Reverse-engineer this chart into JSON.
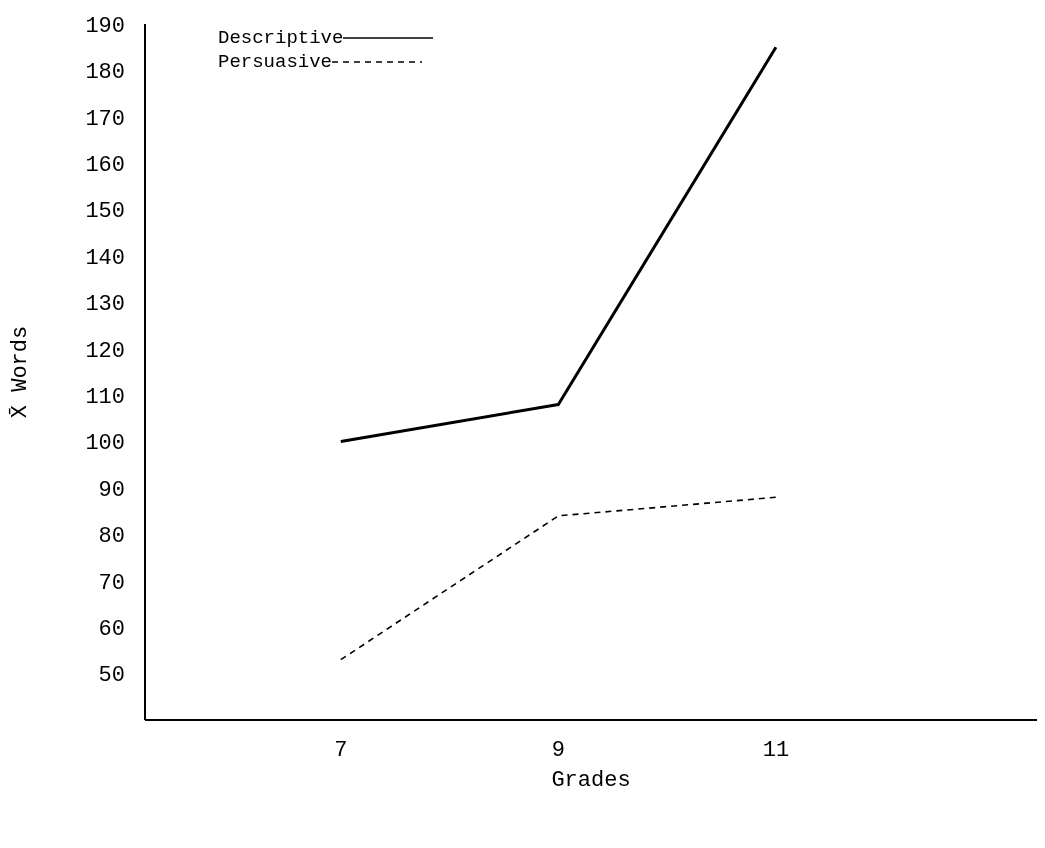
{
  "chart_data": {
    "type": "line",
    "xlabel": "Grades",
    "ylabel": "X̄ Words",
    "x": [
      7,
      9,
      11
    ],
    "series": [
      {
        "name": "Descriptive",
        "color": "#000000",
        "values": [
          100,
          108,
          185
        ],
        "line_style": "solid"
      },
      {
        "name": "Persuasive",
        "color": "#000000",
        "values": [
          53,
          84,
          88
        ],
        "line_style": "dashed"
      }
    ],
    "xlim": [
      5.2,
      13.4
    ],
    "xticks": [
      7,
      9,
      11
    ],
    "ylim": [
      40,
      190
    ],
    "yticks": [
      50,
      60,
      70,
      80,
      90,
      100,
      110,
      120,
      130,
      140,
      150,
      160,
      170,
      180,
      190
    ],
    "grid": false,
    "legend": "top left",
    "marker": "none"
  }
}
